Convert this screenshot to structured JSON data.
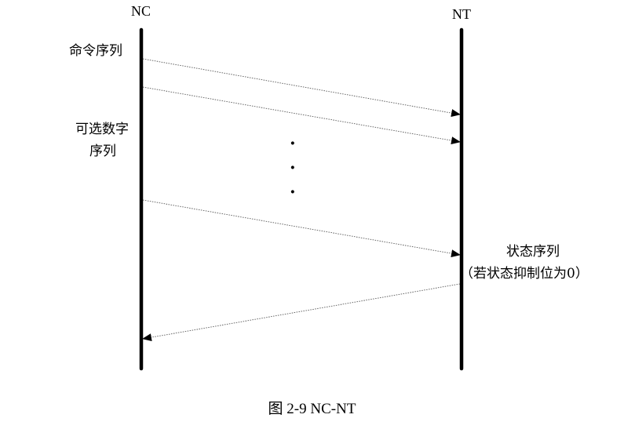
{
  "lifelines": {
    "left": "NC",
    "right": "NT"
  },
  "labels": {
    "command_sequence": "命令序列",
    "optional_data_line1": "可选数字",
    "optional_data_line2": "序列",
    "status_sequence": "状态序列",
    "status_condition": "（若状态抑制位为0）"
  },
  "ellipsis": [
    "·",
    "·",
    "·"
  ],
  "caption": "图 2-9 NC-NT"
}
